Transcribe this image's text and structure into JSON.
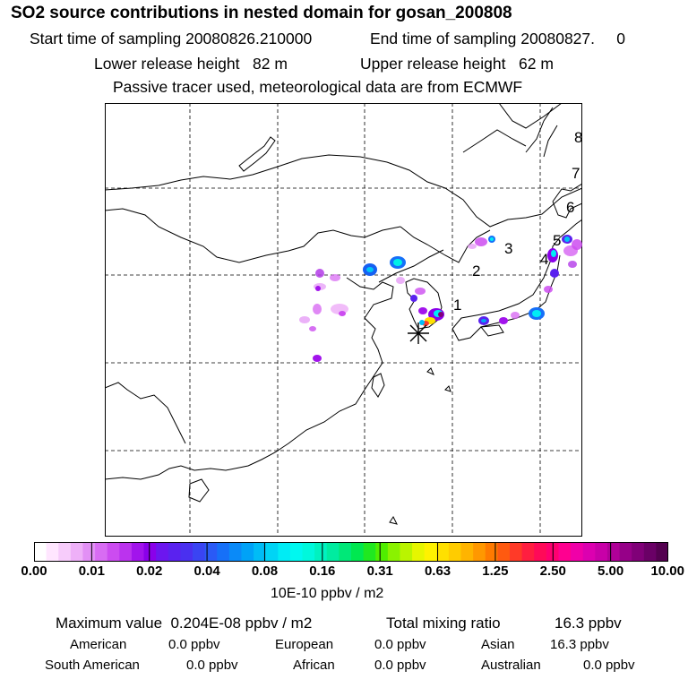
{
  "header": {
    "title": "SO2 source contributions in nested domain for gosan_200808",
    "start_label": "Start time of sampling 20080826.210000",
    "end_label": "End time of sampling 20080827.     0",
    "lower_label": "Lower release height   82 m",
    "upper_label": "Upper release height   62 m",
    "note": "Passive tracer used, meteorological data are from ECMWF"
  },
  "map": {
    "region_numbers": [
      "1",
      "2",
      "3",
      "4",
      "5",
      "6",
      "7",
      "8"
    ],
    "receptor": "Gosan",
    "colors": {
      "coast": "#000000",
      "grid": "#000000"
    }
  },
  "colorbar": {
    "ticks": [
      "0.00",
      "0.01",
      "0.02",
      "0.04",
      "0.08",
      "0.16",
      "0.31",
      "0.63",
      "1.25",
      "2.50",
      "5.00",
      "10.00"
    ],
    "units": "10E-10 ppbv / m2",
    "colors": [
      "#ffffff",
      "#ffe6ff",
      "#f7ccfb",
      "#eeb0f8",
      "#e290f5",
      "#d86cf3",
      "#cc4cf0",
      "#bb33ee",
      "#a214ec",
      "#8a00ea",
      "#6c16ef",
      "#5a22ef",
      "#4a30f0",
      "#3a44f3",
      "#2a5af6",
      "#1670f8",
      "#0a8af8",
      "#00a2f7",
      "#00bcf6",
      "#00d4f5",
      "#00ecf5",
      "#00f8f0",
      "#00f8dc",
      "#00f2c0",
      "#00eca0",
      "#00e878",
      "#00e850",
      "#20e820",
      "#50ee00",
      "#8af200",
      "#baf400",
      "#e6f600",
      "#fff200",
      "#ffe000",
      "#ffcc00",
      "#ffb400",
      "#ff9800",
      "#ff7a00",
      "#ff5a10",
      "#ff3a28",
      "#ff1e40",
      "#ff0a58",
      "#ff0070",
      "#ff0090",
      "#f000a8",
      "#dc00b0",
      "#c800a8",
      "#b00098",
      "#960088",
      "#800078",
      "#6a0066",
      "#540050"
    ]
  },
  "footer": {
    "max_value_label": "Maximum value  0.204E-08 ppbv / m2",
    "total_label": "Total mixing ratio",
    "total_value": "16.3 ppbv",
    "regions": [
      {
        "name": "American",
        "value": "0.0 ppbv"
      },
      {
        "name": "European",
        "value": "0.0 ppbv"
      },
      {
        "name": "Asian",
        "value": "16.3 ppbv"
      },
      {
        "name": "South American",
        "value": "0.0 ppbv"
      },
      {
        "name": "African",
        "value": "0.0 ppbv"
      },
      {
        "name": "Australian",
        "value": "0.0 ppbv"
      }
    ]
  }
}
